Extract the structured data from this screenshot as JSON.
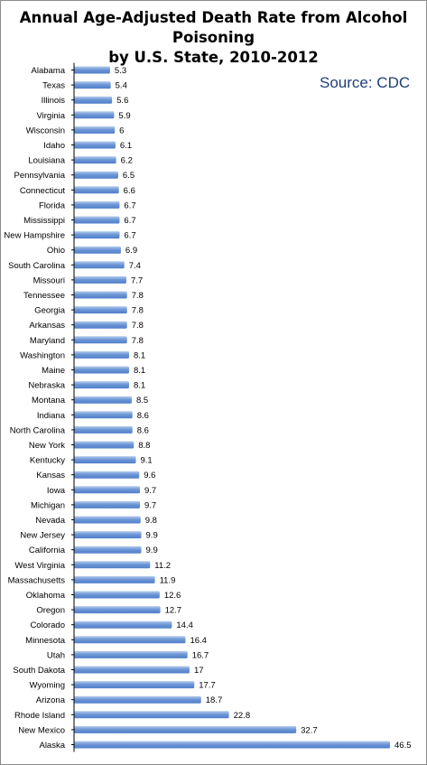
{
  "chart_data": {
    "type": "bar",
    "orientation": "horizontal",
    "title": "Annual Age-Adjusted Death Rate from Alcohol Poisoning by U.S. State, 2010-2012",
    "source": "Source: CDC",
    "categories": [
      "Alabama",
      "Texas",
      "Illinois",
      "Virginia",
      "Wisconsin",
      "Idaho",
      "Louisiana",
      "Pennsylvania",
      "Connecticut",
      "Florida",
      "Mississippi",
      "New Hampshire",
      "Ohio",
      "South Carolina",
      "Missouri",
      "Tennessee",
      "Georgia",
      "Arkansas",
      "Maryland",
      "Washington",
      "Maine",
      "Nebraska",
      "Montana",
      "Indiana",
      "North Carolina",
      "New York",
      "Kentucky",
      "Kansas",
      "Iowa",
      "Michigan",
      "Nevada",
      "New Jersey",
      "California",
      "West Virginia",
      "Massachusetts",
      "Oklahoma",
      "Oregon",
      "Colorado",
      "Minnesota",
      "Utah",
      "South Dakota",
      "Wyoming",
      "Arizona",
      "Rhode Island",
      "New Mexico",
      "Alaska"
    ],
    "values": [
      5.3,
      5.4,
      5.6,
      5.9,
      6,
      6.1,
      6.2,
      6.5,
      6.6,
      6.7,
      6.7,
      6.7,
      6.9,
      7.4,
      7.7,
      7.8,
      7.8,
      7.8,
      7.8,
      8.1,
      8.1,
      8.1,
      8.5,
      8.6,
      8.6,
      8.8,
      9.1,
      9.6,
      9.7,
      9.7,
      9.8,
      9.9,
      9.9,
      11.2,
      11.9,
      12.6,
      12.7,
      14.4,
      16.4,
      16.7,
      17,
      17.7,
      18.7,
      22.8,
      32.7,
      46.5
    ],
    "xlim": [
      0,
      46.5
    ],
    "grid": false,
    "legend": "none",
    "bar_color": "#4f7fc9",
    "bar_color_light": "#b7cdee"
  }
}
